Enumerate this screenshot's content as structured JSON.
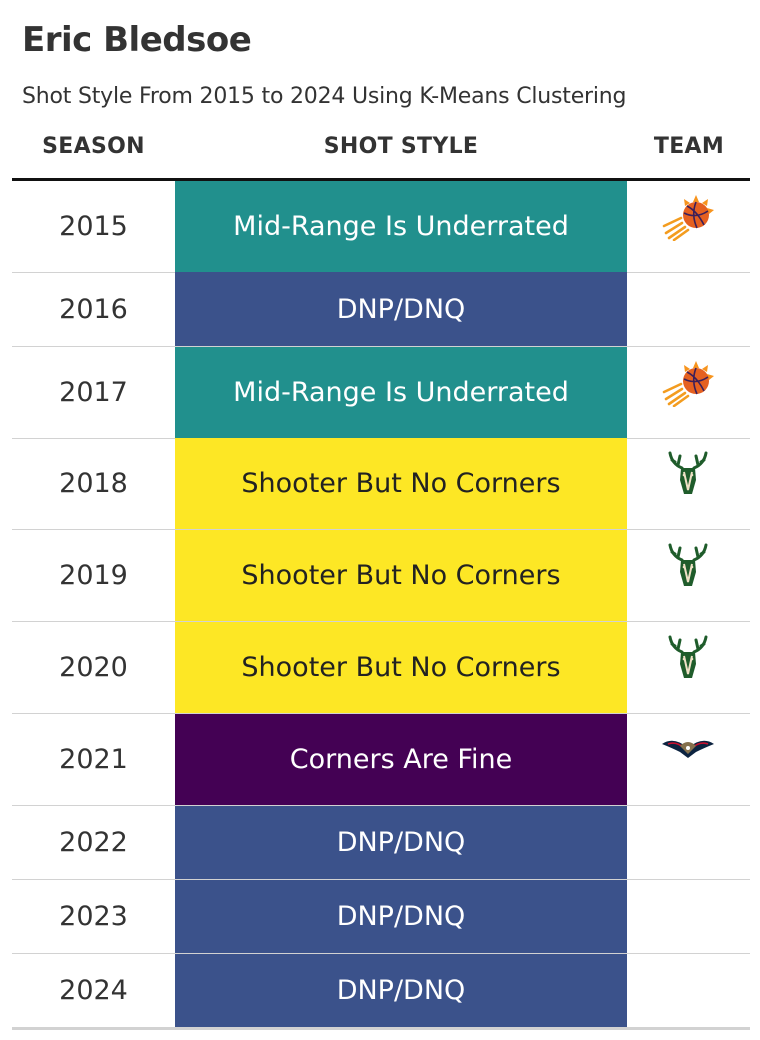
{
  "chart_data": {
    "type": "table",
    "title": "Eric Bledsoe",
    "subtitle": "Shot Style From 2015 to 2024 Using K-Means Clustering",
    "columns": [
      "SEASON",
      "SHOT STYLE",
      "TEAM"
    ],
    "style_colors": {
      "Mid-Range Is Underrated": {
        "bg": "#21908d",
        "fg": "#ffffff"
      },
      "DNP/DNQ": {
        "bg": "#3b528b",
        "fg": "#ffffff"
      },
      "Shooter But No Corners": {
        "bg": "#fde725",
        "fg": "#222222"
      },
      "Corners Are Fine": {
        "bg": "#440154",
        "fg": "#ffffff"
      }
    },
    "rows": [
      {
        "season": "2015",
        "style": "Mid-Range Is Underrated",
        "team_icon": "suns-logo-icon"
      },
      {
        "season": "2016",
        "style": "DNP/DNQ",
        "team_icon": ""
      },
      {
        "season": "2017",
        "style": "Mid-Range Is Underrated",
        "team_icon": "suns-logo-icon"
      },
      {
        "season": "2018",
        "style": "Shooter But No Corners",
        "team_icon": "bucks-logo-icon"
      },
      {
        "season": "2019",
        "style": "Shooter But No Corners",
        "team_icon": "bucks-logo-icon"
      },
      {
        "season": "2020",
        "style": "Shooter But No Corners",
        "team_icon": "bucks-logo-icon"
      },
      {
        "season": "2021",
        "style": "Corners Are Fine",
        "team_icon": "pelicans-logo-icon"
      },
      {
        "season": "2022",
        "style": "DNP/DNQ",
        "team_icon": ""
      },
      {
        "season": "2023",
        "style": "DNP/DNQ",
        "team_icon": ""
      },
      {
        "season": "2024",
        "style": "DNP/DNQ",
        "team_icon": ""
      }
    ]
  }
}
